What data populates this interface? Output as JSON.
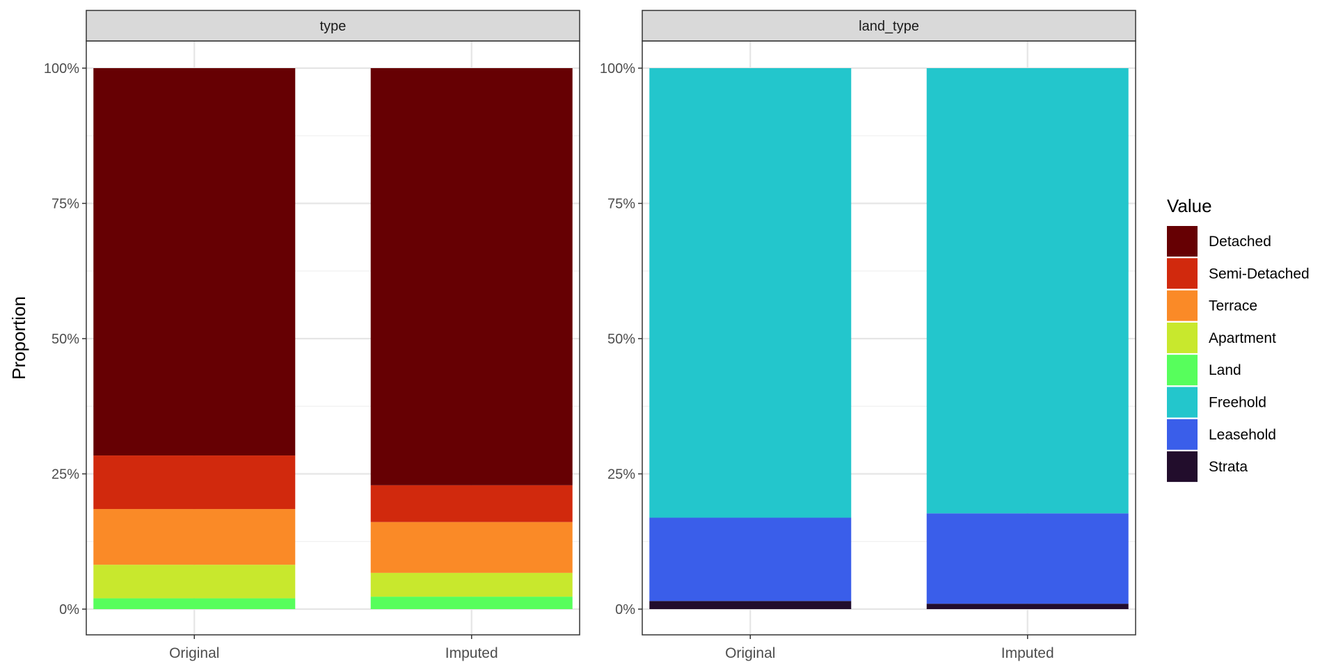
{
  "chart_data": {
    "type": "bar",
    "stacked": true,
    "normalized": true,
    "ylabel": "Proportion",
    "ylim": [
      0,
      1
    ],
    "yticks": [
      "0%",
      "25%",
      "50%",
      "75%",
      "100%"
    ],
    "ytick_values": [
      0,
      0.25,
      0.5,
      0.75,
      1.0
    ],
    "categories": [
      "Original",
      "Imputed"
    ],
    "grid": true,
    "legend": {
      "title": "Value",
      "position": "right",
      "entries": [
        {
          "name": "Detached",
          "color": "#660003"
        },
        {
          "name": "Semi-Detached",
          "color": "#D1290D"
        },
        {
          "name": "Terrace",
          "color": "#FA8A27"
        },
        {
          "name": "Apartment",
          "color": "#C8E82D"
        },
        {
          "name": "Land",
          "color": "#57FE5C"
        },
        {
          "name": "Freehold",
          "color": "#23C6CC"
        },
        {
          "name": "Leasehold",
          "color": "#3A5EEA"
        },
        {
          "name": "Strata",
          "color": "#220D2C"
        }
      ]
    },
    "panels": [
      {
        "title": "type",
        "series": [
          {
            "name": "Land",
            "values": [
              0.02,
              0.023
            ]
          },
          {
            "name": "Apartment",
            "values": [
              0.062,
              0.044
            ]
          },
          {
            "name": "Terrace",
            "values": [
              0.103,
              0.094
            ]
          },
          {
            "name": "Semi-Detached",
            "values": [
              0.099,
              0.068
            ]
          },
          {
            "name": "Detached",
            "values": [
              0.716,
              0.771
            ]
          }
        ]
      },
      {
        "title": "land_type",
        "series": [
          {
            "name": "Strata",
            "values": [
              0.015,
              0.01
            ]
          },
          {
            "name": "Leasehold",
            "values": [
              0.154,
              0.167
            ]
          },
          {
            "name": "Freehold",
            "values": [
              0.831,
              0.823
            ]
          }
        ]
      }
    ]
  }
}
